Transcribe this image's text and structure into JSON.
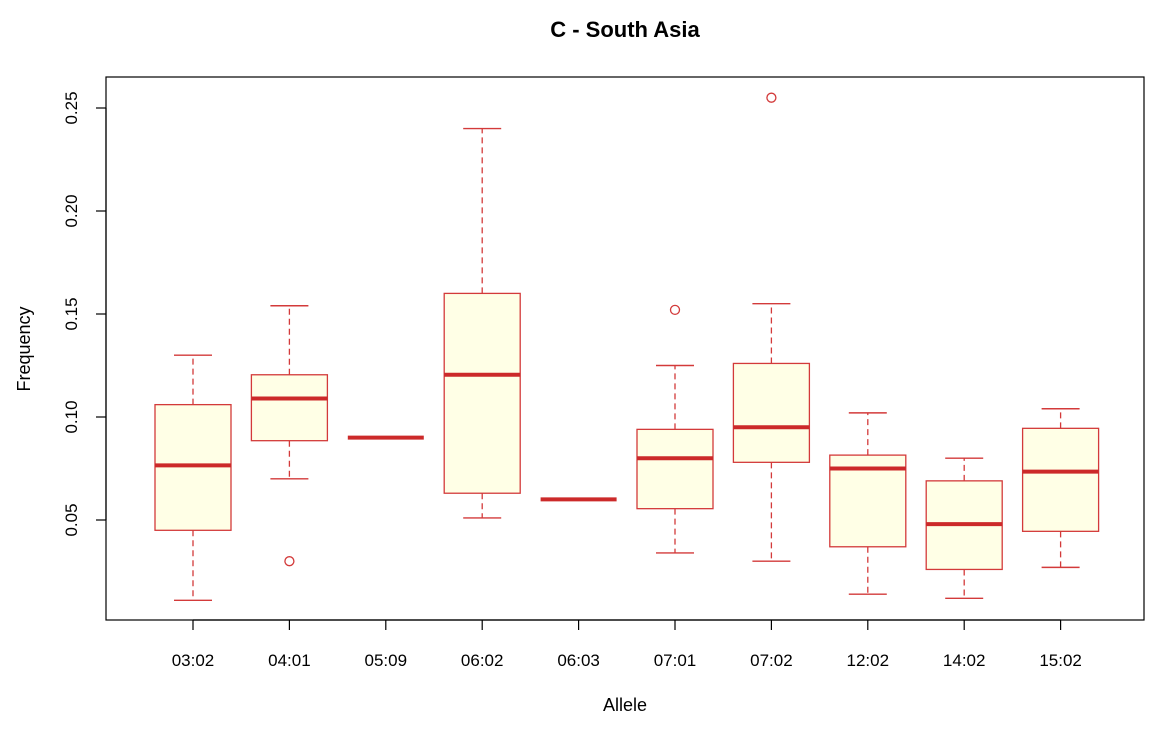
{
  "chart_data": {
    "type": "boxplot",
    "title": "C - South Asia",
    "xlabel": "Allele",
    "ylabel": "Frequency",
    "ylim": [
      0.0,
      0.26
    ],
    "yticks": [
      "0.05",
      "0.10",
      "0.15",
      "0.20",
      "0.25"
    ],
    "ytick_values": [
      0.05,
      0.1,
      0.15,
      0.2,
      0.25
    ],
    "categories": [
      "03:02",
      "04:01",
      "05:09",
      "06:02",
      "06:03",
      "07:01",
      "07:02",
      "12:02",
      "14:02",
      "15:02"
    ],
    "boxes": [
      {
        "whisker_low": 0.011,
        "q1": 0.045,
        "median": 0.0765,
        "q3": 0.106,
        "whisker_high": 0.13,
        "outliers": []
      },
      {
        "whisker_low": 0.07,
        "q1": 0.0885,
        "median": 0.109,
        "q3": 0.1205,
        "whisker_high": 0.154,
        "outliers": [
          0.03
        ]
      },
      {
        "whisker_low": 0.09,
        "q1": 0.09,
        "median": 0.09,
        "q3": 0.09,
        "whisker_high": 0.09,
        "outliers": []
      },
      {
        "whisker_low": 0.051,
        "q1": 0.063,
        "median": 0.1205,
        "q3": 0.16,
        "whisker_high": 0.24,
        "outliers": []
      },
      {
        "whisker_low": 0.06,
        "q1": 0.06,
        "median": 0.06,
        "q3": 0.06,
        "whisker_high": 0.06,
        "outliers": []
      },
      {
        "whisker_low": 0.034,
        "q1": 0.0555,
        "median": 0.08,
        "q3": 0.094,
        "whisker_high": 0.125,
        "outliers": [
          0.152
        ]
      },
      {
        "whisker_low": 0.03,
        "q1": 0.078,
        "median": 0.095,
        "q3": 0.126,
        "whisker_high": 0.155,
        "outliers": [
          0.255
        ]
      },
      {
        "whisker_low": 0.014,
        "q1": 0.037,
        "median": 0.075,
        "q3": 0.0815,
        "whisker_high": 0.102,
        "outliers": []
      },
      {
        "whisker_low": 0.012,
        "q1": 0.026,
        "median": 0.048,
        "q3": 0.069,
        "whisker_high": 0.08,
        "outliers": []
      },
      {
        "whisker_low": 0.027,
        "q1": 0.0445,
        "median": 0.0735,
        "q3": 0.0945,
        "whisker_high": 0.104,
        "outliers": []
      }
    ],
    "colors": {
      "box_fill": "#ffffe6",
      "box_border": "#d33a3a",
      "median": "#cc2a2a",
      "whisker": "#d33a3a",
      "outlier": "#d33a3a",
      "frame": "#000000"
    },
    "grid": false,
    "legend": "none"
  }
}
